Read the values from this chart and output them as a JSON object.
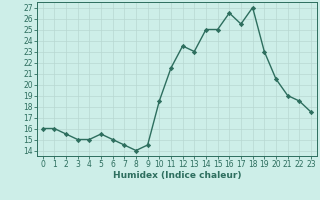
{
  "x": [
    0,
    1,
    2,
    3,
    4,
    5,
    6,
    7,
    8,
    9,
    10,
    11,
    12,
    13,
    14,
    15,
    16,
    17,
    18,
    19,
    20,
    21,
    22,
    23
  ],
  "y": [
    16,
    16,
    15.5,
    15,
    15,
    15.5,
    15,
    14.5,
    14,
    14.5,
    18.5,
    21.5,
    23.5,
    23,
    25,
    25,
    26.5,
    25.5,
    27,
    23,
    20.5,
    19,
    18.5,
    17.5
  ],
  "line_color": "#2d6e5e",
  "marker": "D",
  "markersize": 2.2,
  "linewidth": 1.0,
  "bg_color": "#cdeee8",
  "grid_color": "#b8d8d2",
  "xlabel": "Humidex (Indice chaleur)",
  "xlim": [
    -0.5,
    23.5
  ],
  "ylim": [
    13.5,
    27.5
  ],
  "yticks": [
    14,
    15,
    16,
    17,
    18,
    19,
    20,
    21,
    22,
    23,
    24,
    25,
    26,
    27
  ],
  "xticks": [
    0,
    1,
    2,
    3,
    4,
    5,
    6,
    7,
    8,
    9,
    10,
    11,
    12,
    13,
    14,
    15,
    16,
    17,
    18,
    19,
    20,
    21,
    22,
    23
  ],
  "tick_fontsize": 5.5,
  "xlabel_fontsize": 6.5
}
